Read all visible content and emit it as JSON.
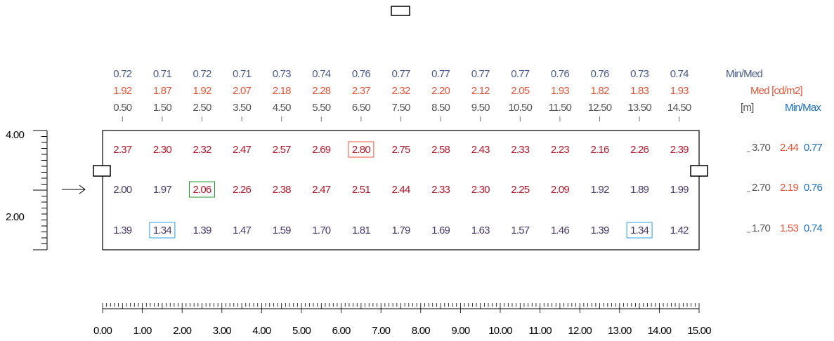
{
  "colors": {
    "minmed": "#4a5a8a",
    "med": "#e8553a",
    "axis": "#555555",
    "minmax": "#1a6fc0",
    "cell_high": "#b4182b",
    "cell_mid": "#7a2040",
    "cell_low": "#4a3a6a",
    "max_box": "#e8553a",
    "min_box": "#2aa0e0",
    "mid_box": "#2a9a2a"
  },
  "header": {
    "minmed_label": "Min/Med",
    "med_label": "Med [cd/m2]",
    "m_label": "[m]",
    "minmax_label": "Min/Max"
  },
  "columns": {
    "positions": [
      "0.50",
      "1.50",
      "2.50",
      "3.50",
      "4.50",
      "5.50",
      "6.50",
      "7.50",
      "8.50",
      "9.50",
      "10.50",
      "11.50",
      "12.50",
      "13.50",
      "14.50"
    ],
    "minmed": [
      "0.72",
      "0.71",
      "0.72",
      "0.71",
      "0.73",
      "0.74",
      "0.76",
      "0.77",
      "0.77",
      "0.77",
      "0.77",
      "0.76",
      "0.76",
      "0.73",
      "0.74"
    ],
    "med": [
      "1.92",
      "1.87",
      "1.92",
      "2.07",
      "2.18",
      "2.28",
      "2.37",
      "2.32",
      "2.20",
      "2.12",
      "2.05",
      "1.93",
      "1.82",
      "1.83",
      "1.93"
    ]
  },
  "grid": {
    "rows": [
      {
        "y_label": "3.70",
        "med": "2.44",
        "minmax": "0.77",
        "values": [
          "2.37",
          "2.30",
          "2.32",
          "2.47",
          "2.57",
          "2.69",
          "2.80",
          "2.75",
          "2.58",
          "2.43",
          "2.33",
          "2.23",
          "2.16",
          "2.26",
          "2.39"
        ]
      },
      {
        "y_label": "2.70",
        "med": "2.19",
        "minmax": "0.76",
        "values": [
          "2.00",
          "1.97",
          "2.06",
          "2.26",
          "2.38",
          "2.47",
          "2.51",
          "2.44",
          "2.33",
          "2.30",
          "2.25",
          "2.09",
          "1.92",
          "1.89",
          "1.99"
        ]
      },
      {
        "y_label": "1.70",
        "med": "1.53",
        "minmax": "0.74",
        "values": [
          "1.39",
          "1.34",
          "1.39",
          "1.47",
          "1.59",
          "1.70",
          "1.81",
          "1.79",
          "1.69",
          "1.63",
          "1.57",
          "1.46",
          "1.39",
          "1.34",
          "1.42"
        ]
      }
    ],
    "boxed": [
      {
        "row": 0,
        "col": 6,
        "kind": "max"
      },
      {
        "row": 1,
        "col": 2,
        "kind": "mid"
      },
      {
        "row": 2,
        "col": 1,
        "kind": "min"
      },
      {
        "row": 2,
        "col": 13,
        "kind": "min"
      }
    ]
  },
  "y_axis": {
    "labels": [
      "4.00",
      "2.00"
    ]
  },
  "x_axis": {
    "labels": [
      "0.00",
      "1.00",
      "2.00",
      "3.00",
      "4.00",
      "5.00",
      "6.00",
      "7.00",
      "8.00",
      "9.00",
      "10.00",
      "11.00",
      "12.00",
      "13.00",
      "14.00",
      "15.00"
    ]
  }
}
